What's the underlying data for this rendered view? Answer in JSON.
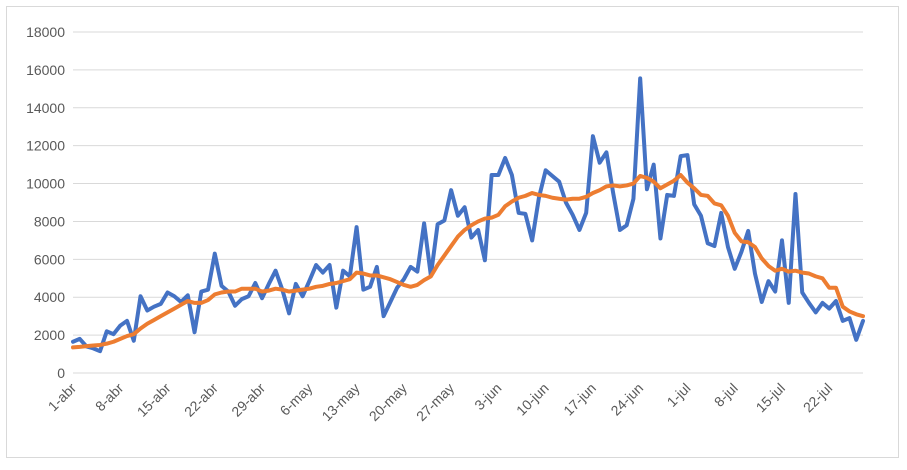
{
  "chart_data": {
    "type": "line",
    "title": "",
    "xlabel": "",
    "ylabel": "",
    "ylim": [
      0,
      18000
    ],
    "yticks": [
      0,
      2000,
      4000,
      6000,
      8000,
      10000,
      12000,
      14000,
      16000,
      18000
    ],
    "grid": true,
    "legend": "none",
    "x_tick_labels": [
      "1-abr",
      "8-abr",
      "15-abr",
      "22-abr",
      "29-abr",
      "6-may",
      "13-may",
      "20-may",
      "27-may",
      "3-jun",
      "10-jun",
      "17-jun",
      "24-jun",
      "1-jul",
      "8-jul",
      "15-jul",
      "22-jul"
    ],
    "x_start": "1-abr",
    "series": [
      {
        "color": "#4472c4",
        "values": [
          1650,
          1800,
          1400,
          1300,
          1150,
          2200,
          2050,
          2500,
          2750,
          1700,
          4050,
          3300,
          3500,
          3650,
          4250,
          4050,
          3750,
          4100,
          2150,
          4300,
          4400,
          6300,
          4600,
          4300,
          3550,
          3900,
          4050,
          4750,
          3950,
          4700,
          5400,
          4400,
          3150,
          4700,
          4050,
          4850,
          5700,
          5300,
          5700,
          3450,
          5400,
          5100,
          7700,
          4400,
          4550,
          5600,
          3000,
          3750,
          4500,
          4950,
          5600,
          5350,
          7900,
          5150,
          7850,
          8050,
          9650,
          8300,
          8750,
          7150,
          7550,
          5950,
          10450,
          10450,
          11350,
          10450,
          8450,
          8400,
          7000,
          9250,
          10700,
          10400,
          10100,
          9000,
          8350,
          7550,
          8450,
          12500,
          11100,
          11650,
          9500,
          7550,
          7800,
          9200,
          15550,
          9700,
          11000,
          7100,
          9400,
          9350,
          11450,
          11500,
          8900,
          8300,
          6850,
          6700,
          8450,
          6650,
          5500,
          6400,
          7500,
          5250,
          3750,
          4850,
          4300,
          7000,
          3700,
          9450,
          4250,
          3700,
          3200,
          3700,
          3400,
          3800,
          2750,
          2900,
          1750,
          2750
        ]
      },
      {
        "color": "#ed7d31",
        "values": [
          1350,
          1380,
          1420,
          1450,
          1480,
          1550,
          1650,
          1800,
          1950,
          2050,
          2350,
          2600,
          2800,
          3000,
          3200,
          3400,
          3600,
          3800,
          3700,
          3700,
          3850,
          4150,
          4250,
          4300,
          4300,
          4450,
          4450,
          4450,
          4300,
          4350,
          4450,
          4400,
          4300,
          4350,
          4400,
          4450,
          4550,
          4600,
          4700,
          4750,
          4850,
          4950,
          5300,
          5250,
          5150,
          5150,
          5050,
          4950,
          4800,
          4650,
          4550,
          4650,
          4900,
          5100,
          5700,
          6200,
          6700,
          7200,
          7550,
          7800,
          8000,
          8150,
          8200,
          8350,
          8800,
          9050,
          9250,
          9350,
          9500,
          9400,
          9350,
          9250,
          9200,
          9150,
          9200,
          9200,
          9300,
          9500,
          9650,
          9850,
          9900,
          9850,
          9900,
          10000,
          10400,
          10300,
          10100,
          9750,
          9950,
          10150,
          10450,
          10050,
          9750,
          9400,
          9350,
          8950,
          8850,
          8300,
          7400,
          6950,
          6900,
          6650,
          6050,
          5650,
          5400,
          5500,
          5350,
          5400,
          5300,
          5250,
          5100,
          5000,
          4500,
          4500,
          3500,
          3250,
          3100,
          3000
        ]
      }
    ]
  }
}
